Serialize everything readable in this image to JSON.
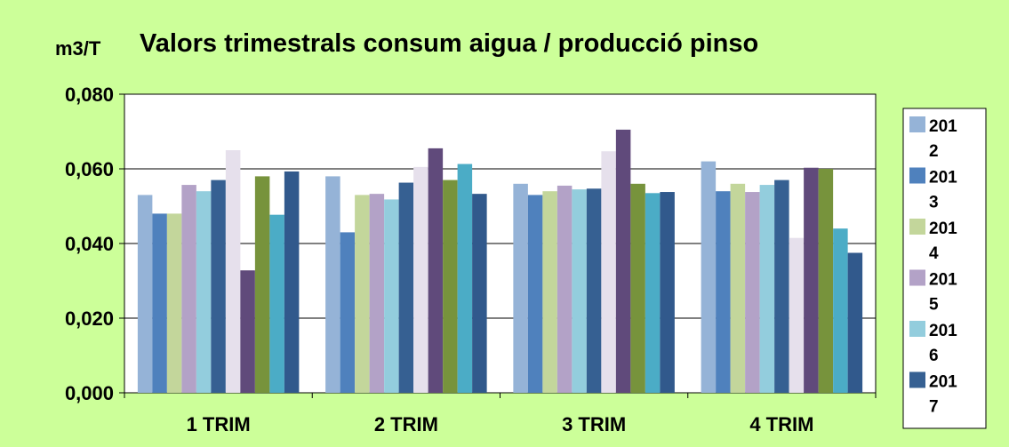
{
  "chart_data": {
    "type": "bar",
    "title": "Valors trimestrals consum aigua / producció pinso",
    "ylabel": "m3/T",
    "xlabel": "",
    "ylim": [
      0,
      0.08
    ],
    "yticks": [
      "0,000",
      "0,020",
      "0,040",
      "0,060",
      "0,080"
    ],
    "grid": true,
    "legend_position": "right",
    "categories": [
      "1 TRIM",
      "2 TRIM",
      "3 TRIM",
      "4 TRIM"
    ],
    "legend_labels": [
      [
        "201",
        "2"
      ],
      [
        "201",
        "3"
      ],
      [
        "201",
        "4"
      ],
      [
        "201",
        "5"
      ],
      [
        "201",
        "6"
      ],
      [
        "201",
        "7"
      ]
    ],
    "series": [
      {
        "name": "2012",
        "color": "#95b3d7",
        "values": [
          0.053,
          0.058,
          0.056,
          0.062
        ]
      },
      {
        "name": "2013",
        "color": "#4f81bd",
        "values": [
          0.048,
          0.043,
          0.053,
          0.054
        ]
      },
      {
        "name": "2014",
        "color": "#c3d69b",
        "values": [
          0.048,
          0.053,
          0.054,
          0.056
        ]
      },
      {
        "name": "2015",
        "color": "#b3a2c7",
        "values": [
          0.0557,
          0.0533,
          0.0555,
          0.0538
        ]
      },
      {
        "name": "2016",
        "color": "#93cddd",
        "values": [
          0.054,
          0.0518,
          0.0545,
          0.0557
        ]
      },
      {
        "name": "2017",
        "color": "#366092",
        "values": [
          0.057,
          0.0563,
          0.0547,
          0.057
        ]
      },
      {
        "name": "",
        "color": "#e6e0ec",
        "values": [
          0.065,
          0.0605,
          0.0647,
          0.0415
        ]
      },
      {
        "name": "",
        "color": "#604a7b",
        "values": [
          0.0328,
          0.0655,
          0.0705,
          0.0603
        ]
      },
      {
        "name": "",
        "color": "#77933c",
        "values": [
          0.058,
          0.057,
          0.056,
          0.06
        ]
      },
      {
        "name": "",
        "color": "#4bacc6",
        "values": [
          0.0477,
          0.0613,
          0.0535,
          0.044
        ]
      },
      {
        "name": "",
        "color": "#31598c",
        "values": [
          0.0593,
          0.0533,
          0.0538,
          0.0375
        ]
      }
    ],
    "colors": {
      "background": "#ccff99",
      "plot_area": "#ffffff",
      "gridline": "#000000"
    }
  }
}
